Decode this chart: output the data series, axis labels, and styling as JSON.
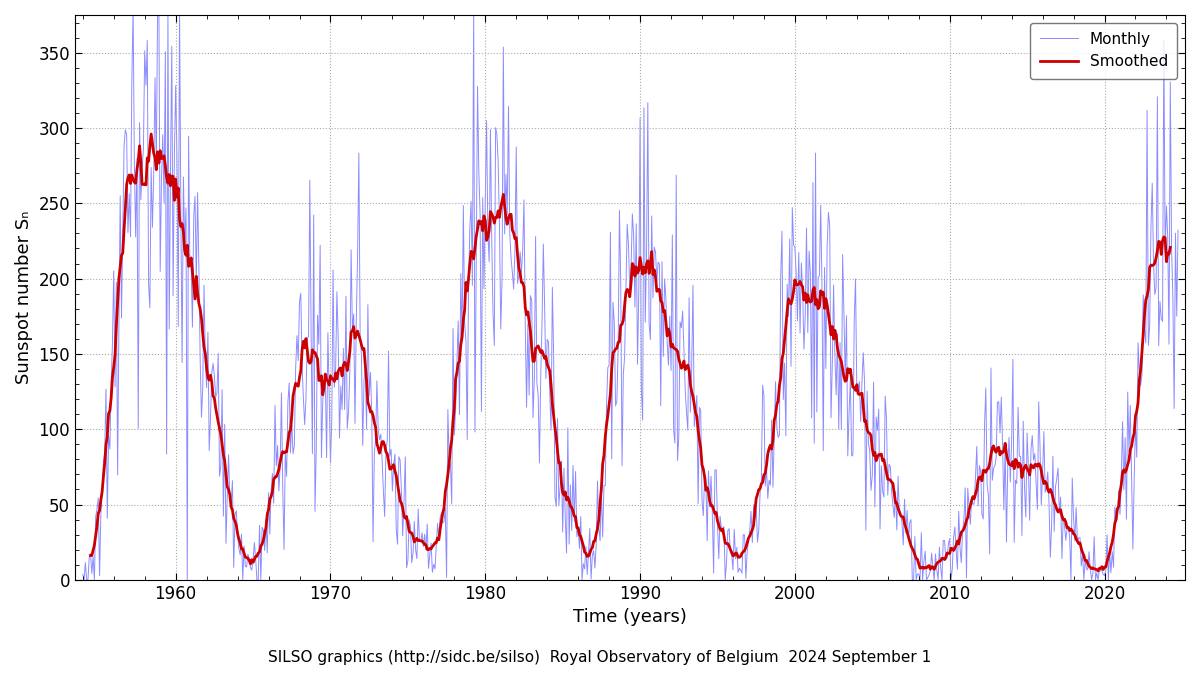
{
  "xlabel": "Time (years)",
  "ylabel": "Sunspot number Sₙ",
  "credit": "SILSO graphics (http://sidc.be/silso)  Royal Observatory of Belgium  2024 September 1",
  "xlim": [
    1953.5,
    2025.2
  ],
  "ylim": [
    0,
    375
  ],
  "yticks": [
    0,
    50,
    100,
    150,
    200,
    250,
    300,
    350
  ],
  "xticks": [
    1960,
    1970,
    1980,
    1990,
    2000,
    2010,
    2020
  ],
  "monthly_color": "#8080ff",
  "smoothed_color": "#cc0000",
  "bg_color": "#ffffff",
  "monthly_lw": 0.7,
  "smoothed_lw": 2.0,
  "legend_fontsize": 11,
  "axis_fontsize": 13,
  "tick_fontsize": 12,
  "credit_fontsize": 11
}
